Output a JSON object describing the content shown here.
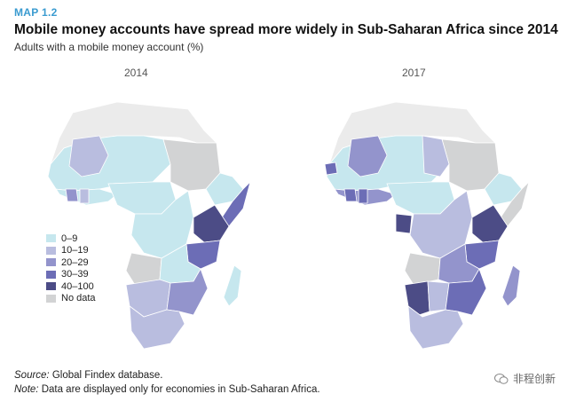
{
  "header": {
    "map_label": "MAP 1.2",
    "title": "Mobile money accounts have spread more widely in Sub-Saharan Africa since 2014",
    "subtitle": "Adults with a mobile money account (%)"
  },
  "maps": [
    {
      "year": "2014"
    },
    {
      "year": "2017"
    }
  ],
  "legend": [
    {
      "label": "0–9",
      "color": "#c6e7ee"
    },
    {
      "label": "10–19",
      "color": "#b9bddf"
    },
    {
      "label": "20–29",
      "color": "#9394cc"
    },
    {
      "label": "30–39",
      "color": "#6c6db6"
    },
    {
      "label": "40–100",
      "color": "#4c4c86"
    },
    {
      "label": "No data",
      "color": "#d2d3d4"
    }
  ],
  "colors": {
    "non_ssa": "#ebebeb",
    "water": "#ffffff",
    "map_label": "#3a9bd0"
  },
  "footnotes": {
    "source_label": "Source:",
    "source_text": " Global Findex database.",
    "note_label": "Note:",
    "note_text": " Data are displayed only for economies in Sub-Saharan Africa."
  },
  "watermark": {
    "text": "非程创新"
  }
}
